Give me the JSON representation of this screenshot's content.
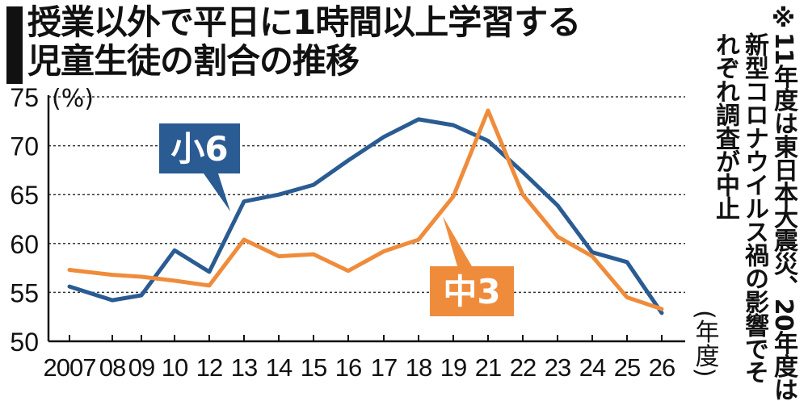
{
  "title": {
    "line1": "授業以外で平日に1時間以上学習する",
    "line2": "児童生徒の割合の推移"
  },
  "note": {
    "mark": "※",
    "col1": "11年度は東日本大震災、20年度は",
    "col2": "新型コロナウイルス禍の影響でそ",
    "col3": "れぞれ調査が中止"
  },
  "chart_data": {
    "type": "line",
    "y_unit": "(%)",
    "x_unit": "(年度)",
    "ylim": [
      50,
      75
    ],
    "yticks": [
      50,
      55,
      60,
      65,
      70,
      75
    ],
    "grid": "horizontal dashed",
    "categories": [
      "2007",
      "08",
      "09",
      "10",
      "12",
      "13",
      "14",
      "15",
      "16",
      "17",
      "18",
      "19",
      "21",
      "22",
      "23",
      "24",
      "25",
      "26"
    ],
    "series": [
      {
        "name": "小6",
        "color": "#2a5b93",
        "values": [
          55.6,
          54.2,
          54.7,
          59.3,
          57.1,
          64.3,
          65.0,
          66.0,
          68.5,
          70.9,
          72.7,
          72.1,
          70.5,
          67.3,
          63.9,
          59.1,
          58.1,
          52.9
        ]
      },
      {
        "name": "中3",
        "color": "#ef8c3c",
        "values": [
          57.3,
          56.8,
          56.6,
          56.2,
          55.7,
          60.4,
          58.7,
          58.9,
          57.2,
          59.2,
          60.4,
          64.8,
          73.6,
          65.0,
          60.7,
          58.7,
          54.5,
          53.3
        ]
      }
    ]
  }
}
